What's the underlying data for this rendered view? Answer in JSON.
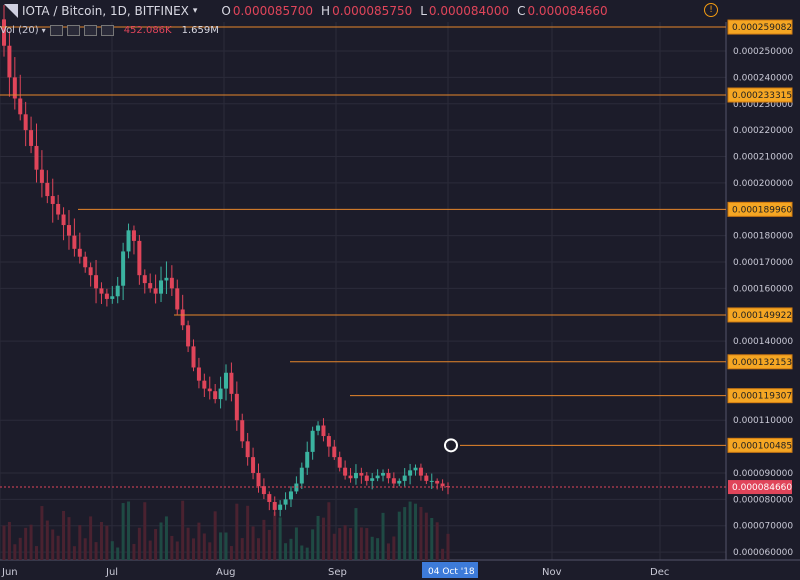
{
  "header": {
    "symbol": "IOTA / Bitcoin, 1D, BITFINEX",
    "caret": "▾",
    "o_label": "O",
    "o_value": "0.000085700",
    "h_label": "H",
    "h_value": "0.000085750",
    "l_label": "L",
    "l_value": "0.000084000",
    "c_label": "C",
    "c_value": "0.000084660",
    "alert_icon": "!"
  },
  "volume_legend": {
    "label": "Vol (20)",
    "caret": "▾",
    "value1": "452.086K",
    "value2": "1.659M"
  },
  "chart_data": {
    "type": "candlestick",
    "pair": "IOTA / Bitcoin",
    "interval": "1D",
    "exchange": "BITFINEX",
    "x_labels": [
      "Jun",
      "Jul",
      "Aug",
      "Sep",
      "Nov",
      "Dec"
    ],
    "x_highlight": "04 Oct '18",
    "y_range": [
      5.7e-05,
      0.000261
    ],
    "y_ticks": [
      "0.000250000",
      "0.000240000",
      "0.000230000",
      "0.000220000",
      "0.000210000",
      "0.000200000",
      "0.000180000",
      "0.000170000",
      "0.000160000",
      "0.000140000",
      "0.000110000",
      "0.000090000",
      "0.000080000",
      "0.000070000",
      "0.000060000"
    ],
    "horizontal_levels": [
      "0.000259082",
      "0.000233315",
      "0.000189960",
      "0.000149922",
      "0.000132153",
      "0.000119307",
      "0.000100485"
    ],
    "last_price": "0.000084660",
    "colors": {
      "up": "#3bb3a0",
      "down": "#e0455a",
      "level": "#e6862b",
      "label_bg": "#f5a623",
      "last": "#e0455a",
      "background": "#1c1c2a",
      "grid": "#2b2b3a"
    },
    "grid": true,
    "closes": [
      0.000252,
      0.00024,
      0.000232,
      0.000226,
      0.00022,
      0.000214,
      0.000205,
      0.0002,
      0.000195,
      0.000192,
      0.000188,
      0.000184,
      0.00018,
      0.000175,
      0.000172,
      0.000168,
      0.000165,
      0.00016,
      0.000158,
      0.000156,
      0.000157,
      0.000161,
      0.000174,
      0.000182,
      0.000178,
      0.000165,
      0.000162,
      0.00016,
      0.000158,
      0.000163,
      0.000164,
      0.00016,
      0.000152,
      0.000146,
      0.000138,
      0.00013,
      0.000125,
      0.000122,
      0.000121,
      0.000118,
      0.000122,
      0.000128,
      0.00012,
      0.00011,
      0.000102,
      9.6e-05,
      9e-05,
      8.5e-05,
      8.2e-05,
      7.9e-05,
      7.6e-05,
      7.8e-05,
      8e-05,
      8.3e-05,
      8.6e-05,
      9.2e-05,
      9.8e-05,
      0.000106,
      0.000108,
      0.000104,
      0.0001,
      9.6e-05,
      9.2e-05,
      8.9e-05,
      8.8e-05,
      9e-05,
      8.9e-05,
      8.7e-05,
      8.8e-05,
      8.9e-05,
      9e-05,
      8.8e-05,
      8.6e-05,
      8.7e-05,
      8.9e-05,
      9.1e-05,
      9.2e-05,
      8.9e-05,
      8.7e-05,
      8.7e-05,
      8.6e-05,
      8.5e-05,
      8.466e-05
    ],
    "volume_note": "volume histogram at bottom"
  }
}
